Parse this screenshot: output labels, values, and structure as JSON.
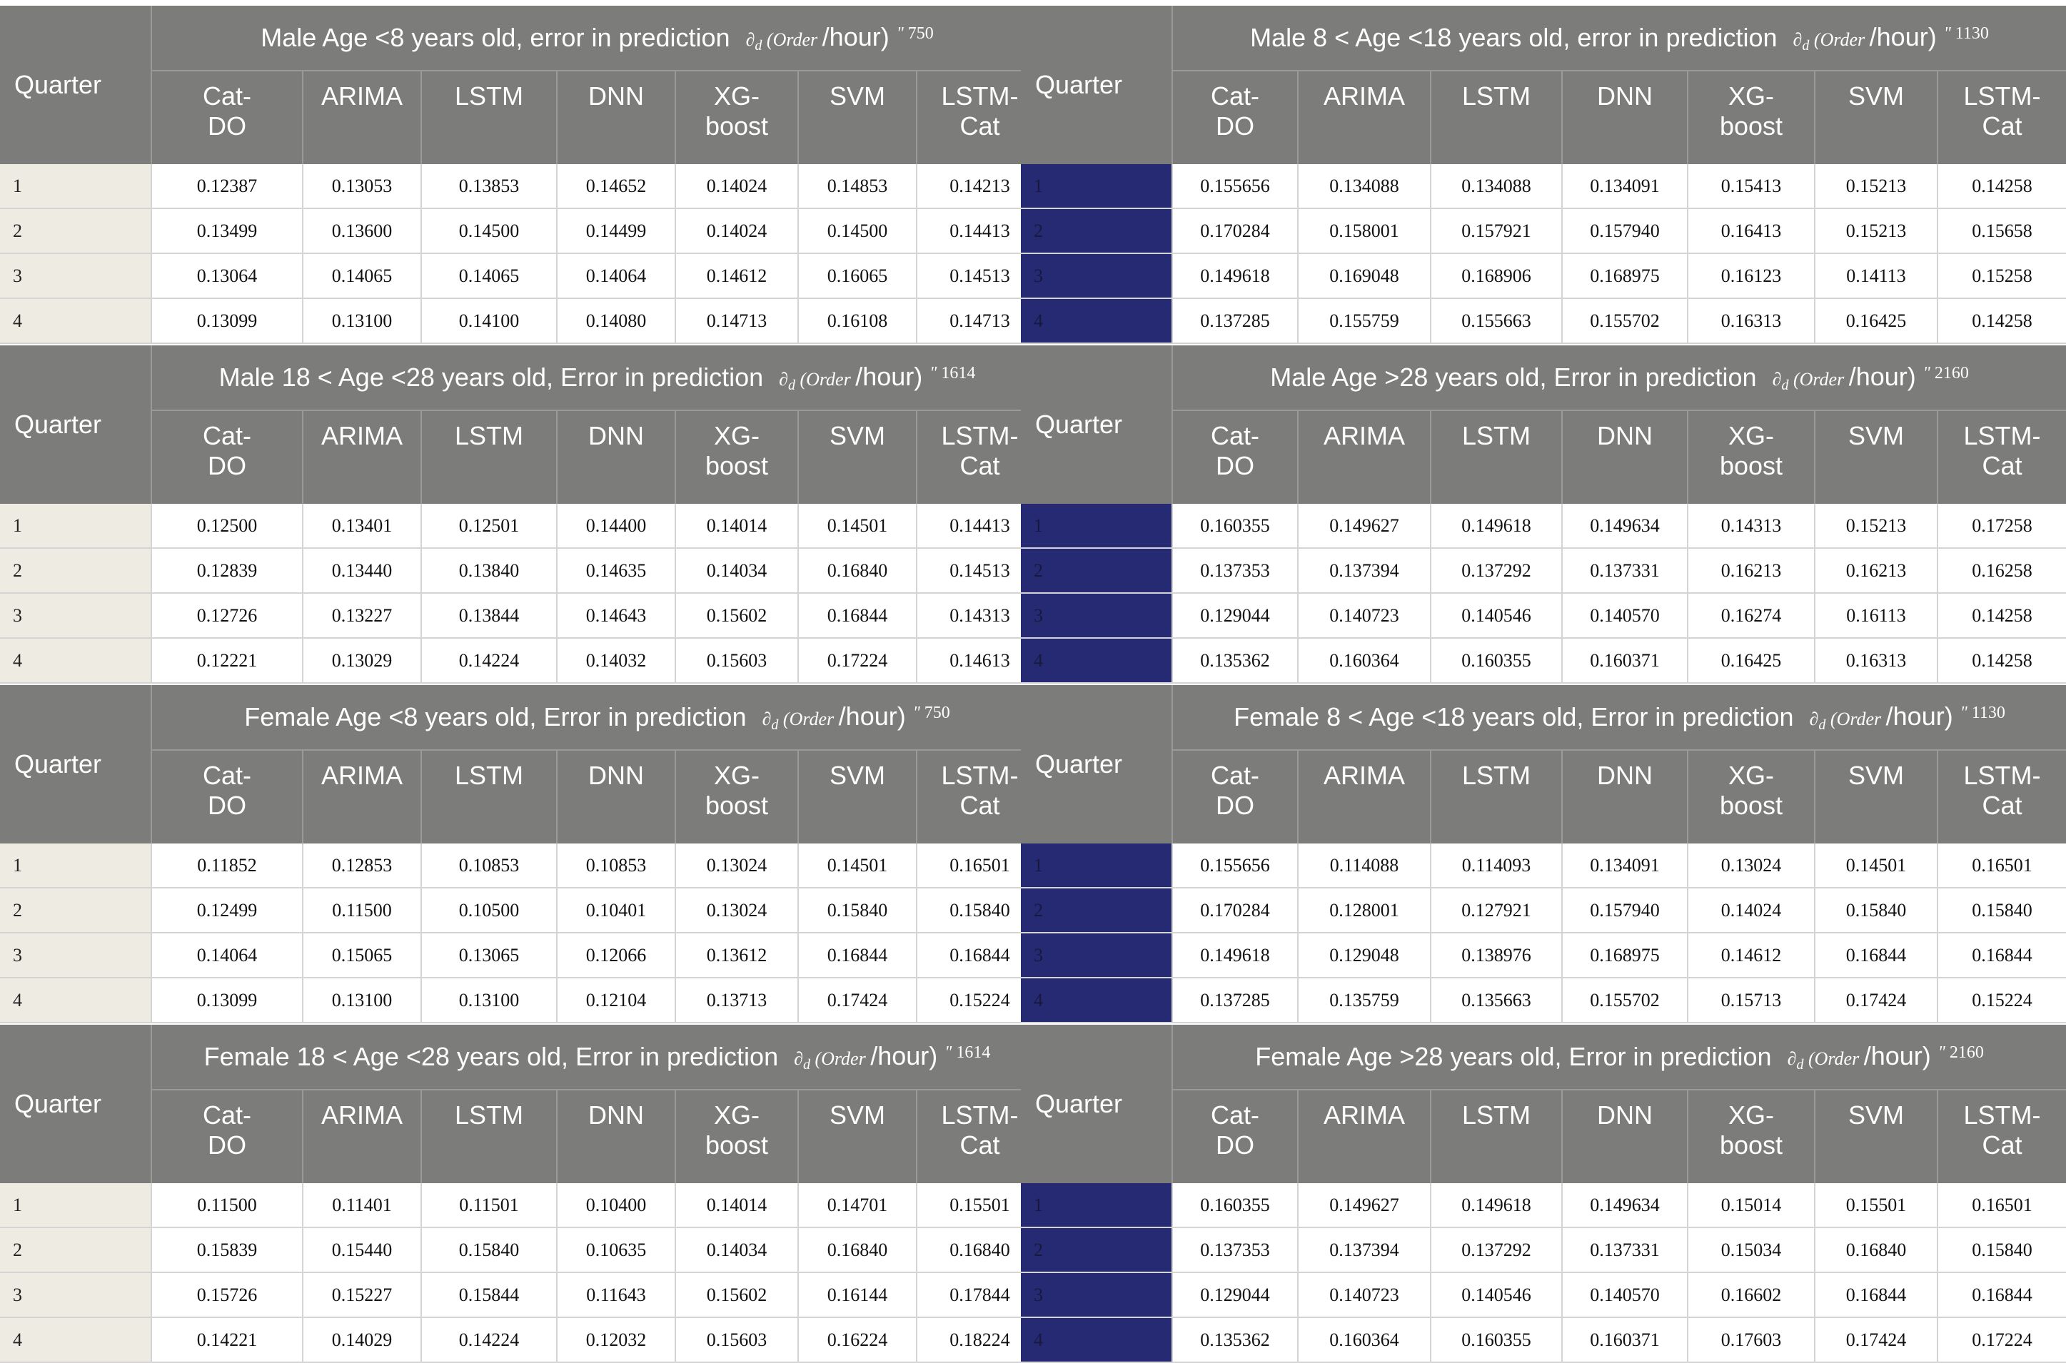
{
  "col_header_quarter": "Quarter",
  "models": [
    "Cat-\nDO",
    "ARIMA",
    "LSTM",
    "DNN",
    "XG-\nboost",
    "SVM",
    "LSTM-\nCat"
  ],
  "unit": {
    "symbol": "∂",
    "sub": "d",
    "order": "(Order",
    "per_hour": "/hour)",
    "mark": "\""
  },
  "tables": [
    {
      "title": "Male Age <8 years old, error in prediction",
      "count": "750",
      "rows": [
        [
          "1",
          "0.12387",
          "0.13053",
          "0.13853",
          "0.14652",
          "0.14024",
          "0.14853",
          "0.14213"
        ],
        [
          "2",
          "0.13499",
          "0.13600",
          "0.14500",
          "0.14499",
          "0.14024",
          "0.14500",
          "0.14413"
        ],
        [
          "3",
          "0.13064",
          "0.14065",
          "0.14065",
          "0.14064",
          "0.14612",
          "0.16065",
          "0.14513"
        ],
        [
          "4",
          "0.13099",
          "0.13100",
          "0.14100",
          "0.14080",
          "0.14713",
          "0.16108",
          "0.14713"
        ]
      ]
    },
    {
      "title": "Male 8 < Age <18 years old, error in prediction",
      "count": "1130",
      "rows": [
        [
          "1",
          "0.155656",
          "0.134088",
          "0.134088",
          "0.134091",
          "0.15413",
          "0.15213",
          "0.14258"
        ],
        [
          "2",
          "0.170284",
          "0.158001",
          "0.157921",
          "0.157940",
          "0.16413",
          "0.15213",
          "0.15658"
        ],
        [
          "3",
          "0.149618",
          "0.169048",
          "0.168906",
          "0.168975",
          "0.16123",
          "0.14113",
          "0.15258"
        ],
        [
          "4",
          "0.137285",
          "0.155759",
          "0.155663",
          "0.155702",
          "0.16313",
          "0.16425",
          "0.14258"
        ]
      ]
    },
    {
      "title": "Male 18 < Age <28 years old, Error in prediction",
      "count": "1614",
      "rows": [
        [
          "1",
          "0.12500",
          "0.13401",
          "0.12501",
          "0.14400",
          "0.14014",
          "0.14501",
          "0.14413"
        ],
        [
          "2",
          "0.12839",
          "0.13440",
          "0.13840",
          "0.14635",
          "0.14034",
          "0.16840",
          "0.14513"
        ],
        [
          "3",
          "0.12726",
          "0.13227",
          "0.13844",
          "0.14643",
          "0.15602",
          "0.16844",
          "0.14313"
        ],
        [
          "4",
          "0.12221",
          "0.13029",
          "0.14224",
          "0.14032",
          "0.15603",
          "0.17224",
          "0.14613"
        ]
      ]
    },
    {
      "title": "Male Age >28 years old, Error in prediction",
      "count": "2160",
      "rows": [
        [
          "1",
          "0.160355",
          "0.149627",
          "0.149618",
          "0.149634",
          "0.14313",
          "0.15213",
          "0.17258"
        ],
        [
          "2",
          "0.137353",
          "0.137394",
          "0.137292",
          "0.137331",
          "0.16213",
          "0.16213",
          "0.16258"
        ],
        [
          "3",
          "0.129044",
          "0.140723",
          "0.140546",
          "0.140570",
          "0.16274",
          "0.16113",
          "0.14258"
        ],
        [
          "4",
          "0.135362",
          "0.160364",
          "0.160355",
          "0.160371",
          "0.16425",
          "0.16313",
          "0.14258"
        ]
      ]
    },
    {
      "title": "Female Age <8 years old, Error in prediction",
      "count": "750",
      "rows": [
        [
          "1",
          "0.11852",
          "0.12853",
          "0.10853",
          "0.10853",
          "0.13024",
          "0.14501",
          "0.16501"
        ],
        [
          "2",
          "0.12499",
          "0.11500",
          "0.10500",
          "0.10401",
          "0.13024",
          "0.15840",
          "0.15840"
        ],
        [
          "3",
          "0.14064",
          "0.15065",
          "0.13065",
          "0.12066",
          "0.13612",
          "0.16844",
          "0.16844"
        ],
        [
          "4",
          "0.13099",
          "0.13100",
          "0.13100",
          "0.12104",
          "0.13713",
          "0.17424",
          "0.15224"
        ]
      ]
    },
    {
      "title": "Female 8 < Age <18 years old, Error in prediction",
      "count": "1130",
      "rows": [
        [
          "1",
          "0.155656",
          "0.114088",
          "0.114093",
          "0.134091",
          "0.13024",
          "0.14501",
          "0.16501"
        ],
        [
          "2",
          "0.170284",
          "0.128001",
          "0.127921",
          "0.157940",
          "0.14024",
          "0.15840",
          "0.15840"
        ],
        [
          "3",
          "0.149618",
          "0.129048",
          "0.138976",
          "0.168975",
          "0.14612",
          "0.16844",
          "0.16844"
        ],
        [
          "4",
          "0.137285",
          "0.135759",
          "0.135663",
          "0.155702",
          "0.15713",
          "0.17424",
          "0.15224"
        ]
      ]
    },
    {
      "title": "Female 18 < Age <28 years old, Error in prediction",
      "count": "1614",
      "rows": [
        [
          "1",
          "0.11500",
          "0.11401",
          "0.11501",
          "0.10400",
          "0.14014",
          "0.14701",
          "0.15501"
        ],
        [
          "2",
          "0.15839",
          "0.15440",
          "0.15840",
          "0.10635",
          "0.14034",
          "0.16840",
          "0.16840"
        ],
        [
          "3",
          "0.15726",
          "0.15227",
          "0.15844",
          "0.11643",
          "0.15602",
          "0.16144",
          "0.17844"
        ],
        [
          "4",
          "0.14221",
          "0.14029",
          "0.14224",
          "0.12032",
          "0.15603",
          "0.16224",
          "0.18224"
        ]
      ]
    },
    {
      "title": "Female Age >28 years old, Error in prediction",
      "count": "2160",
      "rows": [
        [
          "1",
          "0.160355",
          "0.149627",
          "0.149618",
          "0.149634",
          "0.15014",
          "0.15501",
          "0.16501"
        ],
        [
          "2",
          "0.137353",
          "0.137394",
          "0.137292",
          "0.137331",
          "0.15034",
          "0.16840",
          "0.15840"
        ],
        [
          "3",
          "0.129044",
          "0.140723",
          "0.140546",
          "0.140570",
          "0.16602",
          "0.16844",
          "0.16844"
        ],
        [
          "4",
          "0.135362",
          "0.160364",
          "0.160355",
          "0.160371",
          "0.17603",
          "0.17424",
          "0.17224"
        ]
      ]
    }
  ]
}
